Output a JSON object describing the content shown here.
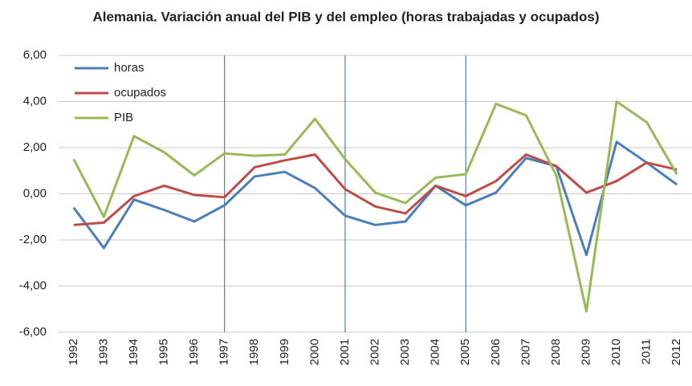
{
  "chart_data": {
    "type": "line",
    "title": "Alemania. Variación anual del PIB y del empleo  (horas trabajadas y ocupados)",
    "categories": [
      "1992",
      "1993",
      "1994",
      "1995",
      "1996",
      "1997",
      "1998",
      "1999",
      "2000",
      "2001",
      "2002",
      "2003",
      "2004",
      "2005",
      "2006",
      "2007",
      "2008",
      "2009",
      "2010",
      "2011",
      "2012"
    ],
    "series": [
      {
        "name": "horas",
        "color": "#4a7ebb",
        "values": [
          -0.6,
          -2.35,
          -0.25,
          -0.7,
          -1.2,
          -0.5,
          0.75,
          0.95,
          0.25,
          -0.95,
          -1.35,
          -1.2,
          0.35,
          -0.5,
          0.05,
          1.55,
          1.2,
          -2.65,
          2.25,
          1.35,
          0.4
        ]
      },
      {
        "name": "ocupados",
        "color": "#be4b48",
        "values": [
          -1.35,
          -1.25,
          -0.1,
          0.35,
          -0.05,
          -0.15,
          1.15,
          1.45,
          1.7,
          0.2,
          -0.55,
          -0.85,
          0.35,
          -0.1,
          0.55,
          1.7,
          1.2,
          0.05,
          0.55,
          1.35,
          1.05
        ]
      },
      {
        "name": "PIB",
        "color": "#98b954",
        "values": [
          1.5,
          -1.0,
          2.5,
          1.8,
          0.8,
          1.75,
          1.65,
          1.7,
          3.25,
          1.5,
          0.05,
          -0.4,
          0.7,
          0.85,
          3.9,
          3.4,
          0.8,
          -5.1,
          4.0,
          3.1,
          0.85
        ]
      }
    ],
    "ylim": [
      -6,
      6
    ],
    "yticks": [
      {
        "value": -6,
        "label": "-6,00"
      },
      {
        "value": -4,
        "label": "-4,00"
      },
      {
        "value": -2,
        "label": "-2,00"
      },
      {
        "value": 0,
        "label": "0,00"
      },
      {
        "value": 2,
        "label": "2,00"
      },
      {
        "value": 4,
        "label": "4,00"
      },
      {
        "value": 6,
        "label": "6,00"
      }
    ],
    "grid": true,
    "legend": "upper left",
    "vlines": [
      "1997",
      "2001",
      "2005"
    ],
    "vline_color": "#4a7ebb"
  }
}
